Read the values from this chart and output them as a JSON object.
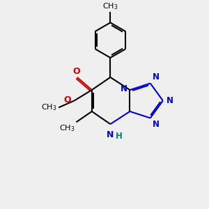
{
  "bg_color": "#efefef",
  "bond_color": "#000000",
  "n_color": "#0000cc",
  "o_color": "#cc0000",
  "nh_color": "#008080",
  "lw": 1.5,
  "figsize": [
    3.0,
    3.0
  ],
  "dpi": 100,
  "xlim": [
    0,
    10
  ],
  "ylim": [
    0,
    10
  ],
  "font_size": 8.5
}
